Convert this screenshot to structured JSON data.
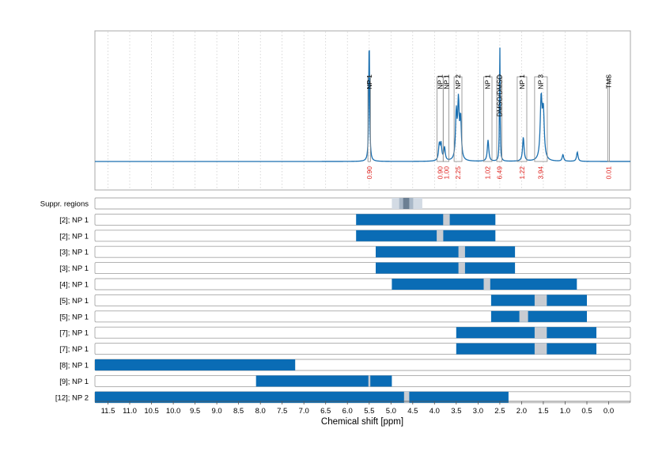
{
  "chart_data": {
    "type": "line",
    "xlabel": "Chemical shift [ppm]",
    "xlim": [
      11.8,
      -0.5
    ],
    "x_ticks": [
      "11.5",
      "11.0",
      "10.5",
      "10.0",
      "9.5",
      "9.0",
      "8.5",
      "8.0",
      "7.5",
      "7.0",
      "6.5",
      "6.0",
      "5.5",
      "5.0",
      "4.5",
      "4.0",
      "3.5",
      "3.0",
      "2.5",
      "2.0",
      "1.5",
      "1.0",
      "0.5",
      "0.0"
    ],
    "spectrum": {
      "baseline": 0,
      "peaks": [
        {
          "ppm": 5.5,
          "height": 0.95,
          "width": 0.012
        },
        {
          "ppm": 3.89,
          "height": 0.12,
          "width": 0.02
        },
        {
          "ppm": 3.85,
          "height": 0.12,
          "width": 0.02
        },
        {
          "ppm": 3.77,
          "height": 0.1,
          "width": 0.02
        },
        {
          "ppm": 3.5,
          "height": 0.35,
          "width": 0.02
        },
        {
          "ppm": 3.45,
          "height": 0.42,
          "width": 0.02
        },
        {
          "ppm": 3.4,
          "height": 0.3,
          "width": 0.02
        },
        {
          "ppm": 2.77,
          "height": 0.16,
          "width": 0.02
        },
        {
          "ppm": 2.5,
          "height": 0.92,
          "width": 0.008
        },
        {
          "ppm": 1.96,
          "height": 0.18,
          "width": 0.02
        },
        {
          "ppm": 1.55,
          "height": 0.45,
          "width": 0.025
        },
        {
          "ppm": 1.5,
          "height": 0.35,
          "width": 0.025
        },
        {
          "ppm": 1.05,
          "height": 0.05,
          "width": 0.02
        },
        {
          "ppm": 0.72,
          "height": 0.07,
          "width": 0.02
        }
      ],
      "annotations": [
        {
          "label": "NP 1",
          "integral": "0.90",
          "from": 5.53,
          "to": 5.47,
          "label_pos": 5.5
        },
        {
          "label": "NP 1",
          "integral": "0.90",
          "from": 3.94,
          "to": 3.8,
          "label_pos": 3.87
        },
        {
          "label": "NP 1",
          "integral": "1.00",
          "from": 3.8,
          "to": 3.67,
          "label_pos": 3.72
        },
        {
          "label": "NP 2",
          "integral": "2.25",
          "from": 3.55,
          "to": 3.37,
          "label_pos": 3.46
        },
        {
          "label": "NP 1",
          "integral": "1.02",
          "from": 2.87,
          "to": 2.68,
          "label_pos": 2.78
        },
        {
          "label": "DMSO/DMSO",
          "integral": "6.49",
          "from": 2.57,
          "to": 2.45,
          "label_pos": 2.51
        },
        {
          "label": "NP 1",
          "integral": "1.22",
          "from": 2.1,
          "to": 1.88,
          "label_pos": 1.99
        },
        {
          "label": "NP 3",
          "integral": "3.94",
          "from": 1.7,
          "to": 1.41,
          "label_pos": 1.56
        },
        {
          "label": "TMS",
          "integral": "0.01",
          "from": 0.02,
          "to": -0.02,
          "label_pos": 0.0
        }
      ]
    },
    "region_rows": [
      {
        "label": "Suppr. regions",
        "bars": [],
        "marker": null,
        "suppr": {
          "from": 4.98,
          "to": 4.28,
          "inner_from": 4.72,
          "inner_to": 4.58
        }
      },
      {
        "label": "[2]; NP 1",
        "bars": [
          [
            5.8,
            2.6
          ]
        ],
        "marker": [
          3.8,
          3.65
        ]
      },
      {
        "label": "[2]; NP 1",
        "bars": [
          [
            5.8,
            2.6
          ]
        ],
        "marker": [
          3.95,
          3.8
        ]
      },
      {
        "label": "[3]; NP 1",
        "bars": [
          [
            5.35,
            2.15
          ]
        ],
        "marker": [
          3.45,
          3.3
        ]
      },
      {
        "label": "[3]; NP 1",
        "bars": [
          [
            5.35,
            2.15
          ]
        ],
        "marker": [
          3.45,
          3.3
        ]
      },
      {
        "label": "[4]; NP 1",
        "bars": [
          [
            4.98,
            0.73
          ]
        ],
        "marker": [
          2.87,
          2.72
        ]
      },
      {
        "label": "[5]; NP 1",
        "bars": [
          [
            2.7,
            0.5
          ]
        ],
        "marker": [
          1.7,
          1.42
        ]
      },
      {
        "label": "[5]; NP 1",
        "bars": [
          [
            2.7,
            0.5
          ]
        ],
        "marker": [
          2.05,
          1.85
        ]
      },
      {
        "label": "[7]; NP 1",
        "bars": [
          [
            3.5,
            0.28
          ]
        ],
        "marker": [
          1.7,
          1.42
        ]
      },
      {
        "label": "[7]; NP 1",
        "bars": [
          [
            3.5,
            0.28
          ]
        ],
        "marker": [
          1.7,
          1.42
        ]
      },
      {
        "label": "[8]; NP 1",
        "bars": [
          [
            11.8,
            7.2
          ]
        ],
        "marker": null
      },
      {
        "label": "[9]; NP 1",
        "bars": [
          [
            8.1,
            4.98
          ]
        ],
        "marker": [
          5.52,
          5.48
        ]
      },
      {
        "label": "[12]; NP 2",
        "bars": [
          [
            11.8,
            2.3
          ]
        ],
        "marker": [
          4.7,
          4.58
        ]
      }
    ]
  },
  "colors": {
    "spectrum": "#1a6fb0",
    "bar": "#0a6cb5",
    "marker": "#c8ccd2",
    "suppr_outer": "#d3dbe4",
    "suppr_mid": "#a9b8c8",
    "suppr_inner": "#6b7f93",
    "integral": "#e0201c",
    "frame": "#a8a8a8",
    "grid": "#c8c8c8"
  }
}
